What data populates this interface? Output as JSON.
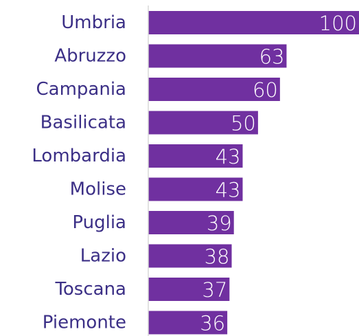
{
  "chart_data": {
    "type": "bar",
    "orientation": "horizontal",
    "categories": [
      "Umbria",
      "Abruzzo",
      "Campania",
      "Basilicata",
      "Lombardia",
      "Molise",
      "Puglia",
      "Lazio",
      "Toscana",
      "Piemonte"
    ],
    "values": [
      100,
      63,
      60,
      50,
      43,
      43,
      39,
      38,
      37,
      36
    ],
    "color": "#7030a0",
    "xlim": [
      0,
      96
    ]
  }
}
